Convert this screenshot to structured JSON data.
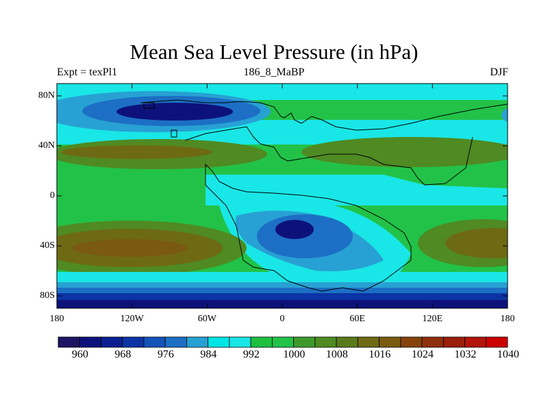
{
  "title": "Mean Sea Level Pressure (in hPa)",
  "subtitle_left": "Expt = texPl1",
  "subtitle_center": "186_8_MaBP",
  "subtitle_right": "DJF",
  "lat_labels": [
    "80N",
    "40N",
    "0",
    "40S",
    "80S"
  ],
  "lon_labels": [
    "180",
    "120W",
    "60W",
    "0",
    "60E",
    "120E",
    "180"
  ],
  "colorbar": {
    "labels": [
      "960",
      "968",
      "976",
      "984",
      "992",
      "1000",
      "1008",
      "1016",
      "1024",
      "1032",
      "1040"
    ],
    "colors": [
      "#1f1463",
      "#0d127a",
      "#0b1f90",
      "#0b33a4",
      "#1353b8",
      "#1c6fc4",
      "#27a1d3",
      "#00e5e5",
      "#19e6e6",
      "#1ec040",
      "#22c248",
      "#3e9a2e",
      "#4f8a22",
      "#5a7a1a",
      "#6e6a14",
      "#7a5a10",
      "#86420c",
      "#8f300c",
      "#9a200a",
      "#b2140a",
      "#cc0000"
    ]
  },
  "palette": {
    "very_low": "#0d127a",
    "low": "#0b33a4",
    "mid_low": "#1c6fc4",
    "sub": "#27a1d3",
    "cyan": "#19e6e6",
    "green": "#22c248",
    "olive": "#4f8a22",
    "brown_olive": "#6e6a14",
    "coast": "#000000"
  }
}
